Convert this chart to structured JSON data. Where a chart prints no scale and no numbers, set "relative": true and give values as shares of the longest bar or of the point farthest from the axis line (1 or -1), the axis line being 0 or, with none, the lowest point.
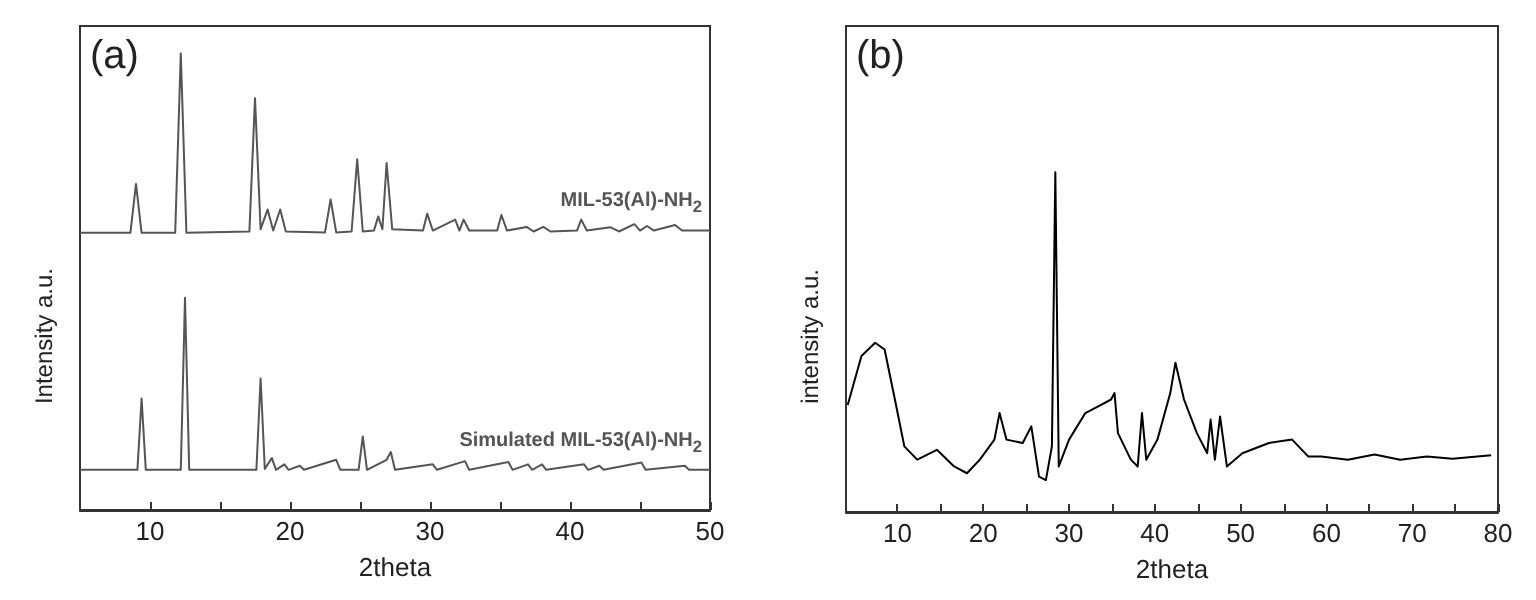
{
  "chart_data": [
    {
      "type": "line",
      "relative": true,
      "title": "(a)",
      "xlabel": "2theta",
      "ylabel": "Intensity a.u.",
      "xlim": [
        5,
        50
      ],
      "xticks": [
        10,
        {
          "value": 15,
          "label": null
        },
        20,
        {
          "value": 25,
          "label": null
        },
        30,
        {
          "value": 35,
          "label": null
        },
        40,
        {
          "value": 45,
          "label": null
        },
        50
      ],
      "marker": "none",
      "legend": false,
      "grid": false,
      "series": [
        {
          "name": "MIL-53(Al)-NH$_{2}$",
          "color": "#555555",
          "x": [
            5,
            8.6,
            9.0,
            9.4,
            11.8,
            12.2,
            12.6,
            17.1,
            17.5,
            17.9,
            18.4,
            18.8,
            19.3,
            19.7,
            22.5,
            22.9,
            23.3,
            24.4,
            24.8,
            25.2,
            26.0,
            26.3,
            26.6,
            26.9,
            27.3,
            29.5,
            29.8,
            30.2,
            31.8,
            32.1,
            32.4,
            32.8,
            34.8,
            35.1,
            35.5,
            36.9,
            37.4,
            38.1,
            38.6,
            40.5,
            40.8,
            41.2,
            42.9,
            43.5,
            44.6,
            45.0,
            45.5,
            46.0,
            47.5,
            48.0,
            50
          ],
          "values": [
            0.607,
            0.607,
            0.714,
            0.607,
            0.607,
            1.0,
            0.607,
            0.61,
            0.902,
            0.615,
            0.658,
            0.612,
            0.658,
            0.61,
            0.608,
            0.68,
            0.608,
            0.61,
            0.768,
            0.61,
            0.612,
            0.643,
            0.615,
            0.76,
            0.615,
            0.612,
            0.649,
            0.612,
            0.636,
            0.612,
            0.636,
            0.612,
            0.612,
            0.646,
            0.612,
            0.62,
            0.61,
            0.62,
            0.61,
            0.612,
            0.636,
            0.612,
            0.619,
            0.61,
            0.626,
            0.612,
            0.622,
            0.612,
            0.624,
            0.612,
            0.612
          ]
        },
        {
          "name": "Simulated MIL-53(Al)-NH$_{2}$",
          "color": "#555555",
          "x": [
            5,
            9.1,
            9.4,
            9.7,
            12.2,
            12.5,
            12.8,
            17.6,
            17.9,
            18.2,
            18.7,
            19.0,
            19.6,
            19.9,
            20.7,
            21.0,
            23.3,
            23.6,
            24.9,
            25.2,
            25.5,
            26.9,
            27.2,
            27.5,
            30.2,
            30.5,
            32.5,
            32.8,
            35.6,
            35.9,
            37.0,
            37.3,
            38.0,
            38.3,
            41.0,
            41.3,
            42.1,
            42.4,
            45.1,
            45.4,
            48.2,
            48.5,
            50
          ],
          "values": [
            0.088,
            0.088,
            0.244,
            0.088,
            0.088,
            0.465,
            0.088,
            0.088,
            0.288,
            0.09,
            0.114,
            0.088,
            0.1,
            0.088,
            0.097,
            0.088,
            0.11,
            0.088,
            0.088,
            0.161,
            0.088,
            0.11,
            0.127,
            0.088,
            0.1,
            0.088,
            0.107,
            0.088,
            0.105,
            0.088,
            0.1,
            0.088,
            0.1,
            0.088,
            0.1,
            0.088,
            0.097,
            0.088,
            0.104,
            0.088,
            0.097,
            0.088,
            0.088
          ]
        }
      ]
    },
    {
      "type": "line",
      "relative": true,
      "title": "(b)",
      "xlabel": "2theta",
      "ylabel": "intensity a.u.",
      "xlim": [
        4,
        80
      ],
      "xticks": [
        10,
        {
          "value": 15,
          "label": null
        },
        20,
        {
          "value": 25,
          "label": null
        },
        30,
        {
          "value": 35,
          "label": null
        },
        40,
        {
          "value": 45,
          "label": null
        },
        50,
        {
          "value": 55,
          "label": null
        },
        60,
        {
          "value": 65,
          "label": null
        },
        70,
        {
          "value": 75,
          "label": null
        },
        80
      ],
      "marker": "none",
      "legend": false,
      "grid": false,
      "series": [
        {
          "color": "#000000",
          "x": [
            4.2,
            5.8,
            7.4,
            8.5,
            9.7,
            10.8,
            12.3,
            14.6,
            16.6,
            18.1,
            19.6,
            21.3,
            21.9,
            22.7,
            24.6,
            25.6,
            26.5,
            27.3,
            28.0,
            28.4,
            28.8,
            30.0,
            31.9,
            33.4,
            34.9,
            35.3,
            35.7,
            37.2,
            38.0,
            38.5,
            39.0,
            40.3,
            41.8,
            42.4,
            43.4,
            44.9,
            46.1,
            46.5,
            47.0,
            47.6,
            48.4,
            50.2,
            53.3,
            56.0,
            57.9,
            59.4,
            62.5,
            65.6,
            68.6,
            71.7,
            74.7,
            79.2
          ],
          "values": [
            0.315,
            0.459,
            0.498,
            0.478,
            0.331,
            0.193,
            0.154,
            0.183,
            0.134,
            0.114,
            0.154,
            0.213,
            0.291,
            0.213,
            0.203,
            0.252,
            0.104,
            0.094,
            0.193,
            1.0,
            0.134,
            0.213,
            0.291,
            0.311,
            0.331,
            0.35,
            0.232,
            0.154,
            0.134,
            0.291,
            0.154,
            0.213,
            0.35,
            0.439,
            0.331,
            0.232,
            0.173,
            0.272,
            0.154,
            0.281,
            0.134,
            0.173,
            0.203,
            0.213,
            0.163,
            0.163,
            0.154,
            0.169,
            0.154,
            0.163,
            0.157,
            0.167
          ]
        }
      ]
    }
  ]
}
